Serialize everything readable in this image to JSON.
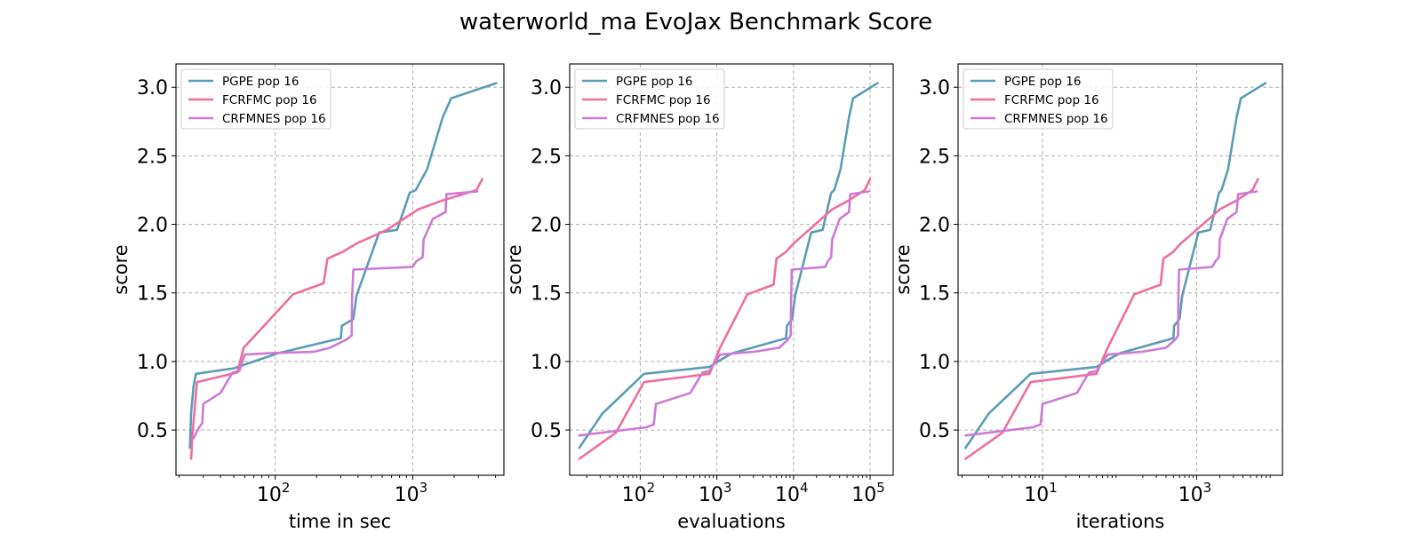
{
  "title": "waterworld_ma EvoJax Benchmark Score",
  "chart_data": [
    {
      "type": "line",
      "xscale": "log",
      "xlabel": "time in sec",
      "ylabel": "score",
      "xlim": [
        19,
        4600
      ],
      "ylim": [
        0.17,
        3.17
      ],
      "xticks": [
        {
          "v": 100,
          "exp": "2"
        },
        {
          "v": 1000,
          "exp": "3"
        }
      ],
      "yticks": [
        "0.5",
        "1.0",
        "1.5",
        "2.0",
        "2.5",
        "3.0"
      ],
      "grid": true,
      "legend": "top-left",
      "series": [
        {
          "name": "PGPE pop 16",
          "color": "#5a9db5",
          "points": [
            [
              24,
              0.37
            ],
            [
              24.5,
              0.63
            ],
            [
              25.5,
              0.82
            ],
            [
              26.5,
              0.91
            ],
            [
              50,
              0.95
            ],
            [
              105,
              1.06
            ],
            [
              300,
              1.17
            ],
            [
              305,
              1.26
            ],
            [
              370,
              1.31
            ],
            [
              390,
              1.48
            ],
            [
              570,
              1.94
            ],
            [
              770,
              1.96
            ],
            [
              950,
              2.23
            ],
            [
              1050,
              2.25
            ],
            [
              1270,
              2.4
            ],
            [
              1650,
              2.78
            ],
            [
              1900,
              2.92
            ],
            [
              4050,
              3.03
            ]
          ]
        },
        {
          "name": "FCRFMC pop 16",
          "color": "#ee6e9f",
          "points": [
            [
              24.5,
              0.29
            ],
            [
              25,
              0.45
            ],
            [
              27,
              0.85
            ],
            [
              53,
              0.92
            ],
            [
              59,
              1.1
            ],
            [
              135,
              1.49
            ],
            [
              225,
              1.57
            ],
            [
              240,
              1.75
            ],
            [
              310,
              1.8
            ],
            [
              390,
              1.86
            ],
            [
              650,
              1.96
            ],
            [
              1100,
              2.11
            ],
            [
              1600,
              2.17
            ],
            [
              2900,
              2.25
            ],
            [
              3200,
              2.33
            ]
          ]
        },
        {
          "name": "CRFMNES pop 16",
          "color": "#cc7ad6",
          "points": [
            [
              25.5,
              0.44
            ],
            [
              28,
              0.52
            ],
            [
              29.5,
              0.55
            ],
            [
              30,
              0.69
            ],
            [
              40,
              0.77
            ],
            [
              49,
              0.92
            ],
            [
              55,
              0.93
            ],
            [
              60,
              1.05
            ],
            [
              90,
              1.06
            ],
            [
              190,
              1.07
            ],
            [
              250,
              1.1
            ],
            [
              330,
              1.16
            ],
            [
              360,
              1.19
            ],
            [
              362,
              1.45
            ],
            [
              370,
              1.67
            ],
            [
              1000,
              1.69
            ],
            [
              1060,
              1.73
            ],
            [
              1180,
              1.76
            ],
            [
              1200,
              1.89
            ],
            [
              1400,
              2.04
            ],
            [
              1730,
              2.09
            ],
            [
              1760,
              2.22
            ],
            [
              2950,
              2.24
            ]
          ]
        }
      ]
    },
    {
      "type": "line",
      "xscale": "log",
      "xlabel": "evaluations",
      "ylabel": "score",
      "xlim": [
        12,
        200000
      ],
      "ylim": [
        0.17,
        3.17
      ],
      "xticks": [
        {
          "v": 100,
          "exp": "2"
        },
        {
          "v": 1000,
          "exp": "3"
        },
        {
          "v": 10000,
          "exp": "4"
        },
        {
          "v": 100000,
          "exp": "5"
        }
      ],
      "yticks": [
        "0.5",
        "1.0",
        "1.5",
        "2.0",
        "2.5",
        "3.0"
      ],
      "grid": true,
      "legend": "top-left",
      "series": [
        {
          "name": "PGPE pop 16",
          "color": "#5a9db5",
          "points": [
            [
              16,
              0.37
            ],
            [
              32,
              0.62
            ],
            [
              112,
              0.91
            ],
            [
              800,
              0.96
            ],
            [
              1100,
              1.01
            ],
            [
              1600,
              1.06
            ],
            [
              8000,
              1.17
            ],
            [
              8200,
              1.26
            ],
            [
              9600,
              1.31
            ],
            [
              10500,
              1.48
            ],
            [
              17000,
              1.94
            ],
            [
              24000,
              1.96
            ],
            [
              31000,
              2.23
            ],
            [
              34000,
              2.25
            ],
            [
              41000,
              2.4
            ],
            [
              53000,
              2.78
            ],
            [
              60000,
              2.92
            ],
            [
              125000,
              3.03
            ]
          ]
        },
        {
          "name": "FCRFMC pop 16",
          "color": "#ee6e9f",
          "points": [
            [
              16,
              0.29
            ],
            [
              48,
              0.48
            ],
            [
              112,
              0.85
            ],
            [
              800,
              0.91
            ],
            [
              1100,
              1.1
            ],
            [
              2500,
              1.49
            ],
            [
              5500,
              1.56
            ],
            [
              6000,
              1.75
            ],
            [
              8000,
              1.8
            ],
            [
              10000,
              1.86
            ],
            [
              16000,
              1.96
            ],
            [
              32000,
              2.11
            ],
            [
              51000,
              2.17
            ],
            [
              85000,
              2.25
            ],
            [
              100000,
              2.33
            ]
          ]
        },
        {
          "name": "CRFMNES pop 16",
          "color": "#cc7ad6",
          "points": [
            [
              16,
              0.46
            ],
            [
              120,
              0.52
            ],
            [
              150,
              0.54
            ],
            [
              160,
              0.69
            ],
            [
              450,
              0.77
            ],
            [
              650,
              0.92
            ],
            [
              800,
              0.93
            ],
            [
              1100,
              1.05
            ],
            [
              3000,
              1.07
            ],
            [
              6500,
              1.1
            ],
            [
              8500,
              1.16
            ],
            [
              9200,
              1.19
            ],
            [
              9300,
              1.45
            ],
            [
              9500,
              1.67
            ],
            [
              26000,
              1.69
            ],
            [
              28000,
              1.73
            ],
            [
              31000,
              1.76
            ],
            [
              32000,
              1.89
            ],
            [
              40000,
              2.04
            ],
            [
              53000,
              2.09
            ],
            [
              55000,
              2.22
            ],
            [
              96000,
              2.24
            ]
          ]
        }
      ]
    },
    {
      "type": "line",
      "xscale": "log",
      "xlabel": "iterations",
      "ylabel": "score",
      "xlim": [
        0.8,
        13000
      ],
      "ylim": [
        0.17,
        3.17
      ],
      "xticks": [
        {
          "v": 10,
          "exp": "1"
        },
        {
          "v": 1000,
          "exp": "3"
        }
      ],
      "yticks": [
        "0.5",
        "1.0",
        "1.5",
        "2.0",
        "2.5",
        "3.0"
      ],
      "grid": true,
      "legend": "top-left",
      "series": [
        {
          "name": "PGPE pop 16",
          "color": "#5a9db5",
          "points": [
            [
              1,
              0.37
            ],
            [
              2,
              0.62
            ],
            [
              7,
              0.91
            ],
            [
              50,
              0.96
            ],
            [
              70,
              1.01
            ],
            [
              100,
              1.06
            ],
            [
              500,
              1.17
            ],
            [
              510,
              1.26
            ],
            [
              600,
              1.31
            ],
            [
              650,
              1.48
            ],
            [
              1050,
              1.94
            ],
            [
              1500,
              1.96
            ],
            [
              1950,
              2.23
            ],
            [
              2100,
              2.25
            ],
            [
              2550,
              2.4
            ],
            [
              3300,
              2.78
            ],
            [
              3750,
              2.92
            ],
            [
              7800,
              3.03
            ]
          ]
        },
        {
          "name": "FCRFMC pop 16",
          "color": "#ee6e9f",
          "points": [
            [
              1,
              0.29
            ],
            [
              3,
              0.48
            ],
            [
              7,
              0.85
            ],
            [
              50,
              0.91
            ],
            [
              70,
              1.1
            ],
            [
              155,
              1.49
            ],
            [
              340,
              1.56
            ],
            [
              370,
              1.75
            ],
            [
              500,
              1.8
            ],
            [
              620,
              1.86
            ],
            [
              1000,
              1.96
            ],
            [
              2000,
              2.11
            ],
            [
              3200,
              2.17
            ],
            [
              5300,
              2.25
            ],
            [
              6250,
              2.33
            ]
          ]
        },
        {
          "name": "CRFMNES pop 16",
          "color": "#cc7ad6",
          "points": [
            [
              1,
              0.46
            ],
            [
              7.5,
              0.52
            ],
            [
              9.4,
              0.54
            ],
            [
              10,
              0.69
            ],
            [
              28,
              0.77
            ],
            [
              40,
              0.92
            ],
            [
              50,
              0.93
            ],
            [
              70,
              1.05
            ],
            [
              190,
              1.07
            ],
            [
              400,
              1.1
            ],
            [
              530,
              1.16
            ],
            [
              575,
              1.19
            ],
            [
              580,
              1.45
            ],
            [
              590,
              1.67
            ],
            [
              1600,
              1.69
            ],
            [
              1750,
              1.73
            ],
            [
              1950,
              1.76
            ],
            [
              2000,
              1.89
            ],
            [
              2500,
              2.04
            ],
            [
              3300,
              2.09
            ],
            [
              3450,
              2.22
            ],
            [
              6000,
              2.24
            ]
          ]
        }
      ]
    }
  ]
}
